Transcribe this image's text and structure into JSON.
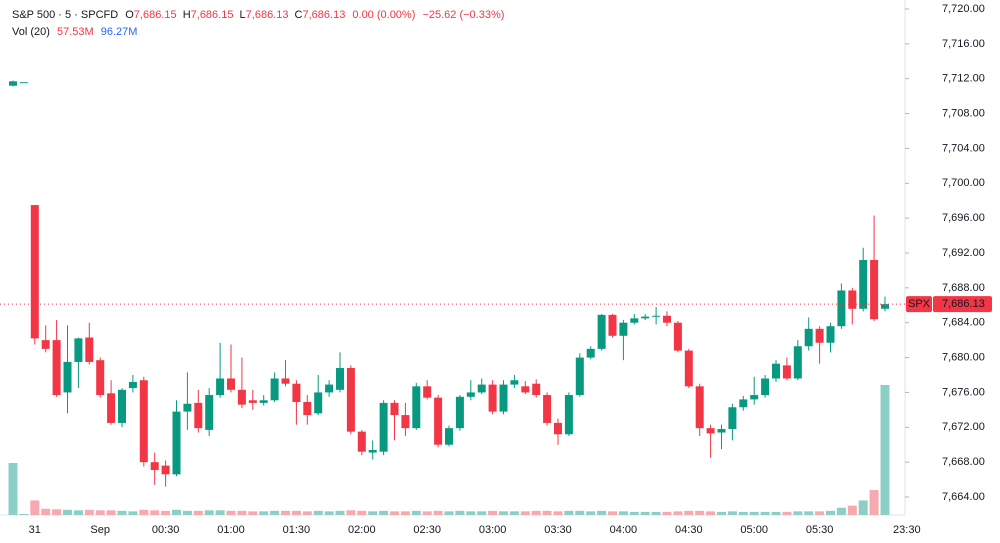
{
  "chart_data": {
    "type": "candlestick",
    "legend": {
      "symbol": "S&P 500 · 5 · SPCFD",
      "ohlc": [
        {
          "key": "O",
          "value": "7,686.15"
        },
        {
          "key": "H",
          "value": "7,686.15"
        },
        {
          "key": "L",
          "value": "7,686.13"
        },
        {
          "key": "C",
          "value": "7,686.13"
        }
      ],
      "change": "0.00 (0.00%)",
      "change_session": "−25.62 (−0.33%)",
      "volume_label": "Vol (20)",
      "volume_value": "57.53M",
      "volume_ma": "96.27M"
    },
    "categories": [
      null,
      null,
      "31",
      null,
      null,
      null,
      null,
      null,
      "Sep",
      null,
      null,
      null,
      null,
      null,
      "00:30",
      null,
      null,
      null,
      null,
      null,
      "01:00",
      null,
      null,
      null,
      null,
      null,
      "01:30",
      null,
      null,
      null,
      null,
      null,
      "02:00",
      null,
      null,
      null,
      null,
      null,
      "02:30",
      null,
      null,
      null,
      null,
      null,
      "03:00",
      null,
      null,
      null,
      null,
      null,
      "03:30",
      null,
      null,
      null,
      null,
      null,
      "04:00",
      null,
      null,
      null,
      null,
      null,
      "04:30",
      null,
      null,
      null,
      null,
      null,
      "05:00",
      null,
      null,
      null,
      null,
      null,
      "05:30",
      null,
      null,
      null,
      null,
      null,
      null,
      null,
      "23:30"
    ],
    "open": [
      7711.2,
      7711.6,
      7697.5,
      7682,
      7682,
      7676,
      7679.5,
      7682.3,
      7679.7,
      7675.9,
      7672.5,
      7676.5,
      7677.4,
      7668,
      7667.6,
      7666.6,
      7673.8,
      7674.8,
      7671.7,
      7675.7,
      7677.6,
      7676.3,
      7675.1,
      7674.8,
      7675.1,
      7677.6,
      7677,
      7674.9,
      7673.6,
      7676,
      7676.3,
      7678.8,
      7671.5,
      7669.1,
      7669.2,
      7674.8,
      7673.4,
      7671.9,
      7676.7,
      7675.4,
      7670,
      7671.9,
      7675.5,
      7676,
      7676.9,
      7673.8,
      7676.9,
      7676.7,
      7677,
      7675.7,
      7672.5,
      7671.2,
      7675.7,
      7680,
      7681,
      7684.9,
      7682.5,
      7684,
      7684.5,
      7684.8,
      7684.8,
      7684,
      7680.8,
      7676.7,
      7671.9,
      7671.4,
      7671.8,
      7674.3,
      7675.2,
      7675.7,
      7677.6,
      7679.1,
      7677.6,
      7681.3,
      7683.3,
      7681.7,
      7683.6,
      7687.7,
      7685.6,
      7691.2,
      7685.6,
      null,
      null
    ],
    "high": [
      7711.8,
      7711.6,
      7697.5,
      7683.7,
      7684.3,
      7683.7,
      7682.3,
      7684,
      7680,
      7677.4,
      7676.5,
      7678,
      7677.8,
      7669.1,
      7668.2,
      7675.1,
      7678.3,
      7676.3,
      7676.5,
      7681.7,
      7681.5,
      7680,
      7676.3,
      7675.7,
      7678.3,
      7679.7,
      7677.4,
      7675.7,
      7678,
      7677.4,
      7680.6,
      7679.1,
      7671.7,
      7670.5,
      7675.1,
      7675.1,
      7674.8,
      7677.1,
      7677.4,
      7675.7,
      7672.2,
      7675.7,
      7677.4,
      7677.6,
      7677.4,
      7677.4,
      7678,
      7677.3,
      7677.5,
      7676,
      7673,
      7676,
      7680.5,
      7681.3,
      7685,
      7685,
      7684.3,
      7685,
      7685,
      7685.8,
      7685.3,
      7684.2,
      7681,
      7677,
      7672.3,
      7672.3,
      7674.7,
      7675.6,
      7677.8,
      7678,
      7679.7,
      7680,
      7682,
      7684.6,
      7683.6,
      7684,
      7688.5,
      7688,
      7692.6,
      7696.3,
      7687,
      null,
      null
    ],
    "low": [
      7711.1,
      7711.6,
      7681.5,
      7680.6,
      7675.5,
      7673.6,
      7676.5,
      7679.2,
      7675.4,
      7672.3,
      7672,
      7676,
      7667.5,
      7665.4,
      7665.2,
      7666.4,
      7671.7,
      7671.4,
      7671,
      7675.4,
      7676,
      7674.2,
      7674,
      7674.5,
      7674.9,
      7676.7,
      7672.3,
      7672.3,
      7673.4,
      7675.5,
      7676,
      7671.2,
      7668.8,
      7668.3,
      7668.8,
      7670.5,
      7671,
      7671.7,
      7675.2,
      7669.7,
      7669.8,
      7671.6,
      7675.1,
      7675.8,
      7673.5,
      7673.5,
      7676.5,
      7675.8,
      7675.4,
      7672.2,
      7670,
      7671,
      7675.5,
      7679.8,
      7680.8,
      7682.3,
      7679.7,
      7683.8,
      7684.3,
      7683.8,
      7683.6,
      7680.6,
      7676.5,
      7671,
      7668.5,
      7669.5,
      7670.5,
      7673.9,
      7674.6,
      7675.4,
      7677.2,
      7677.4,
      7677.4,
      7680.8,
      7679.3,
      7680.6,
      7683.3,
      7683.8,
      7685.3,
      7684.2,
      7685.3,
      null,
      null
    ],
    "close": [
      7711.7,
      7711.6,
      7682.2,
      7681,
      7675.7,
      7679.5,
      7682.2,
      7679.5,
      7675.7,
      7672.5,
      7676.3,
      7677.2,
      7668,
      7667.1,
      7666.6,
      7673.8,
      7674.7,
      7671.9,
      7675.7,
      7677.6,
      7676.3,
      7674.6,
      7674.8,
      7675.1,
      7677.6,
      7677,
      7674.9,
      7673.4,
      7676,
      7676.9,
      7678.8,
      7671.5,
      7669.2,
      7669.4,
      7674.8,
      7673.4,
      7671.9,
      7676.7,
      7675.4,
      7670,
      7671.9,
      7675.5,
      7676,
      7676.9,
      7673.8,
      7676.9,
      7677.4,
      7676,
      7675.7,
      7672.5,
      7671.2,
      7675.7,
      7680,
      7681,
      7684.9,
      7682.5,
      7684,
      7684.5,
      7684.7,
      7684.8,
      7684,
      7680.8,
      7676.7,
      7671.9,
      7671.3,
      7671.8,
      7674.3,
      7675.2,
      7675.7,
      7677.6,
      7679.3,
      7677.6,
      7681.3,
      7683.3,
      7681.7,
      7683.6,
      7687.7,
      7685.6,
      7691.2,
      7684.4,
      7686.13,
      null,
      null
    ],
    "volume": [
      500,
      10,
      140,
      60,
      55,
      50,
      45,
      50,
      45,
      45,
      40,
      35,
      50,
      45,
      40,
      50,
      40,
      40,
      45,
      45,
      40,
      40,
      35,
      35,
      40,
      40,
      40,
      35,
      40,
      35,
      40,
      45,
      40,
      35,
      40,
      35,
      35,
      40,
      35,
      40,
      35,
      40,
      35,
      35,
      40,
      35,
      35,
      35,
      40,
      40,
      35,
      40,
      40,
      35,
      40,
      35,
      35,
      30,
      30,
      30,
      30,
      35,
      40,
      40,
      35,
      30,
      35,
      30,
      30,
      30,
      30,
      30,
      35,
      35,
      35,
      40,
      70,
      90,
      140,
      240,
      1250,
      null,
      null
    ],
    "up_color": "#089981",
    "down_color": "#f23645",
    "up_volume_color": "#8ccfc6",
    "down_volume_color": "#f7a9b0",
    "ylim": [
      7664,
      7720
    ],
    "yticks": [
      {
        "value": 7720,
        "label": "7,720.00"
      },
      {
        "value": 7716,
        "label": "7,716.00"
      },
      {
        "value": 7712,
        "label": "7,712.00"
      },
      {
        "value": 7708,
        "label": "7,708.00"
      },
      {
        "value": 7704,
        "label": "7,704.00"
      },
      {
        "value": 7700,
        "label": "7,700.00"
      },
      {
        "value": 7696,
        "label": "7,696.00"
      },
      {
        "value": 7692,
        "label": "7,692.00"
      },
      {
        "value": 7688,
        "label": "7,688.00"
      },
      {
        "value": 7684,
        "label": "7,684.00"
      },
      {
        "value": 7680,
        "label": "7,680.00"
      },
      {
        "value": 7676,
        "label": "7,676.00"
      },
      {
        "value": 7672,
        "label": "7,672.00"
      },
      {
        "value": 7668,
        "label": "7,668.00"
      },
      {
        "value": 7664,
        "label": "7,664.00"
      }
    ],
    "last_price": {
      "value": 7686.13,
      "label": "7,686.13",
      "symbol": "SPX"
    }
  }
}
